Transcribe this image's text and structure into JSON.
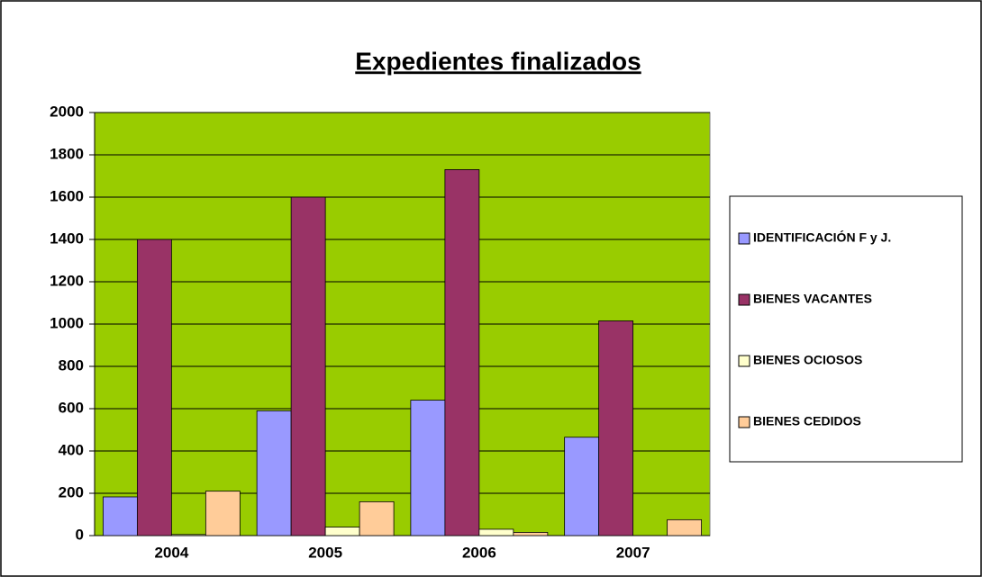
{
  "chart_data": {
    "type": "bar",
    "title": "Expedientes finalizados",
    "categories": [
      "2004",
      "2005",
      "2006",
      "2007"
    ],
    "series": [
      {
        "name": "IDENTIFICACIÓN F y J.",
        "color": "#9999ff",
        "values": [
          183,
          590,
          640,
          465
        ]
      },
      {
        "name": "BIENES VACANTES",
        "color": "#993366",
        "values": [
          1400,
          1600,
          1730,
          1015
        ]
      },
      {
        "name": "BIENES OCIOSOS",
        "color": "#ffffcc",
        "values": [
          5,
          40,
          30,
          0
        ]
      },
      {
        "name": "BIENES CEDIDOS",
        "color": "#ffcc99",
        "values": [
          210,
          160,
          15,
          75
        ]
      }
    ],
    "ylim": [
      0,
      2000
    ],
    "yticks": [
      0,
      200,
      400,
      600,
      800,
      1000,
      1200,
      1400,
      1600,
      1800,
      2000
    ],
    "grid": true,
    "background": "#99cc00",
    "legend": "right"
  }
}
